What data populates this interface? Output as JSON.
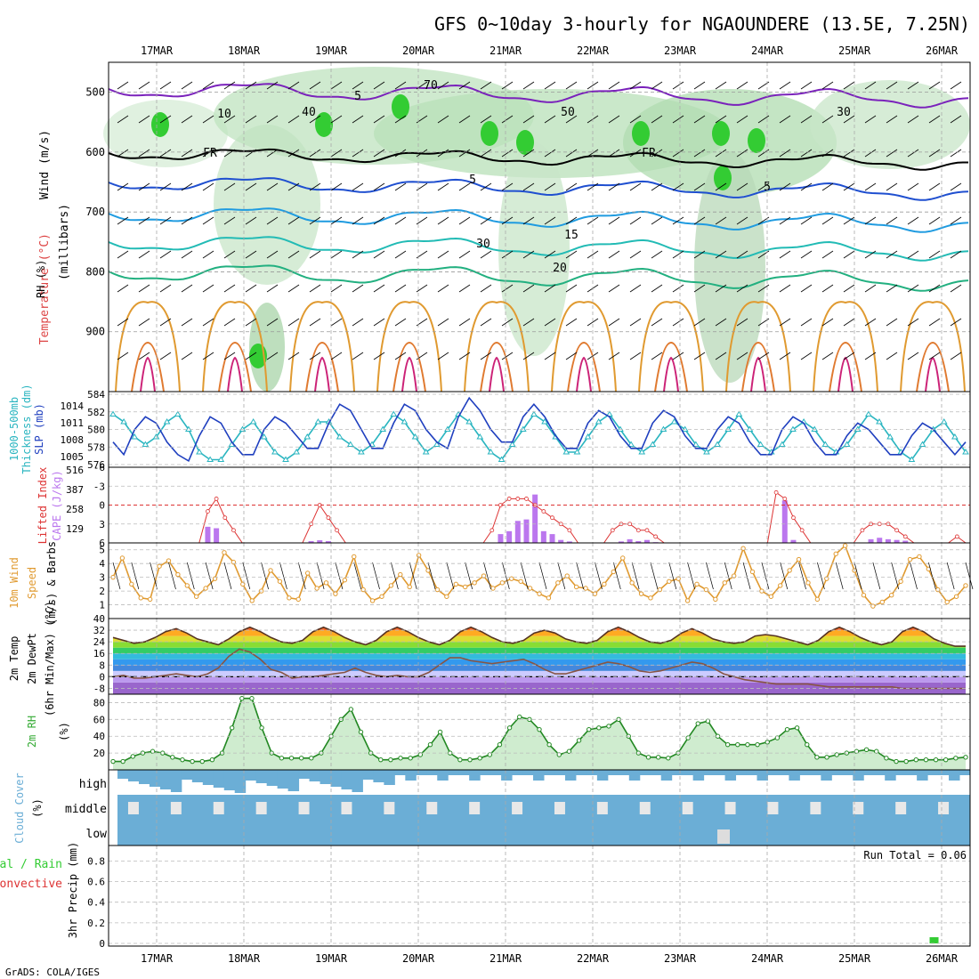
{
  "title": "GFS 0~10day 3-hourly for NGAOUNDERE (13.5E, 7.25N)",
  "footer": "GrADS: COLA/IGES",
  "date_labels": [
    "17MAR",
    "18MAR",
    "19MAR",
    "20MAR",
    "21MAR",
    "22MAR",
    "23MAR",
    "24MAR",
    "25MAR",
    "26MAR"
  ],
  "panel_labels": {
    "profile": {
      "line1": "Wind (m/s)",
      "line2_temp": "Temperature (°C)",
      "line2_rh": "RH (%)",
      "line3": "(millibars)"
    },
    "thickness": {
      "a": "1000-500mb",
      "b": "Thickness (dm)",
      "c": "SLP (mb)"
    },
    "lifted": {
      "a": "Lifted Index",
      "b": "CAPE (J/kg)"
    },
    "wind10": {
      "a": "10m Wind",
      "b": "Speed",
      "c": "(m/s) & Barbs"
    },
    "temp2m": {
      "a": "2m Temp",
      "b": "2m DewPt",
      "c": "(6hr Min/Max) (°C)"
    },
    "rh2m": {
      "a": "2m RH",
      "b": "(%)"
    },
    "cloud": {
      "a": "Cloud Cover",
      "b": "(%)"
    },
    "precip": {
      "a": "Total / Rain",
      "b": "Convective",
      "c": "3hr Precip (mm)"
    }
  },
  "run_total": "Run Total = 0.06",
  "colors": {
    "rh_green": "#33cc33",
    "slp": "#1f3fbf",
    "thickness": "#2ab5c0",
    "cape": "#bb77ee",
    "lifted": "#dd3333",
    "wind": "#e09a30",
    "cloud": "#6baed6",
    "precip": "#33cc33"
  },
  "chart_data": [
    {
      "type": "line",
      "panel": "profile",
      "y_ticks": [
        500,
        600,
        700,
        800,
        900
      ],
      "ylim": [
        1000,
        450
      ],
      "contour_labels": [
        "5",
        "FR",
        "5",
        "10",
        "15",
        "20",
        "30",
        "40",
        "50",
        "70",
        "FR",
        "5",
        "30"
      ]
    },
    {
      "type": "line",
      "panel": "thickness_slp",
      "y_ticks_left": [
        "584",
        "582",
        "580",
        "578",
        "576"
      ],
      "y_ticks_right": [
        "1014",
        "1011",
        "1008",
        "1005"
      ],
      "series": [
        {
          "name": "SLP (mb)",
          "values": [
            1008,
            1006,
            1010,
            1012,
            1011,
            1008,
            1006,
            1005,
            1009,
            1012,
            1011,
            1008,
            1006,
            1006,
            1010,
            1012,
            1011,
            1009,
            1007,
            1007,
            1011,
            1014,
            1013,
            1010,
            1007,
            1007,
            1011,
            1014,
            1013,
            1010,
            1008,
            1007,
            1012,
            1015,
            1013,
            1010,
            1008,
            1008,
            1012,
            1014,
            1012,
            1009,
            1007,
            1007,
            1011,
            1013,
            1012,
            1009,
            1007,
            1007,
            1011,
            1013,
            1012,
            1009,
            1007,
            1007,
            1010,
            1012,
            1011,
            1008,
            1006,
            1006,
            1010,
            1012,
            1011,
            1008,
            1006,
            1006,
            1009,
            1011,
            1010,
            1008,
            1006,
            1006,
            1009,
            1011,
            1010,
            1008,
            1006,
            1008
          ]
        },
        {
          "name": "1000-500mb Thickness (dm)",
          "values": [
            582,
            581,
            579,
            578,
            579,
            581,
            582,
            580,
            577,
            576,
            576,
            578,
            580,
            581,
            579,
            577,
            576,
            577,
            579,
            581,
            581,
            579,
            578,
            577,
            578,
            580,
            582,
            581,
            579,
            577,
            578,
            580,
            582,
            581,
            579,
            577,
            576,
            578,
            580,
            582,
            581,
            579,
            577,
            577,
            579,
            581,
            582,
            580,
            578,
            577,
            578,
            580,
            581,
            580,
            578,
            577,
            578,
            580,
            582,
            580,
            578,
            577,
            578,
            580,
            581,
            580,
            578,
            577,
            578,
            580,
            582,
            581,
            579,
            577,
            576,
            578,
            580,
            581,
            579,
            577
          ]
        }
      ]
    },
    {
      "type": "bar",
      "panel": "lifted_cape",
      "y_ticks_left": [
        "-6",
        "-3",
        "0",
        "3",
        "6"
      ],
      "y_ticks_right": [
        "516",
        "387",
        "258",
        "129"
      ],
      "series": [
        {
          "name": "CAPE (J/kg)",
          "values": [
            0,
            0,
            0,
            0,
            0,
            0,
            0,
            0,
            0,
            0,
            0,
            110,
            100,
            0,
            0,
            0,
            0,
            0,
            0,
            0,
            0,
            0,
            0,
            12,
            18,
            12,
            0,
            0,
            0,
            0,
            0,
            0,
            0,
            0,
            0,
            0,
            0,
            0,
            0,
            0,
            0,
            0,
            0,
            0,
            0,
            60,
            80,
            150,
            160,
            330,
            80,
            60,
            20,
            10,
            0,
            0,
            0,
            0,
            0,
            10,
            25,
            12,
            20,
            5,
            0,
            0,
            0,
            0,
            0,
            0,
            0,
            0,
            0,
            0,
            0,
            0,
            0,
            0,
            290,
            20,
            0,
            0,
            0,
            0,
            0,
            0,
            0,
            0,
            25,
            35,
            25,
            20,
            15,
            0,
            0,
            0,
            0,
            0,
            0,
            0
          ]
        },
        {
          "name": "Lifted Index",
          "values": [
            6,
            6,
            6,
            6,
            6,
            6,
            6,
            6,
            6,
            6,
            6,
            1,
            -1,
            2,
            4,
            6,
            6,
            6,
            6,
            6,
            6,
            6,
            6,
            3,
            0,
            2,
            4,
            6,
            6,
            6,
            6,
            6,
            6,
            6,
            6,
            6,
            6,
            6,
            6,
            6,
            6,
            6,
            6,
            6,
            4,
            0,
            -1,
            -1,
            -1,
            0,
            1,
            2,
            3,
            4,
            6,
            6,
            6,
            6,
            4,
            3,
            3,
            4,
            4,
            5,
            6,
            6,
            6,
            6,
            6,
            6,
            6,
            6,
            6,
            6,
            6,
            6,
            6,
            -2,
            -1,
            2,
            4,
            6,
            6,
            6,
            6,
            6,
            6,
            4,
            3,
            3,
            3,
            4,
            5,
            6,
            6,
            6,
            6,
            6,
            5,
            6
          ]
        }
      ]
    },
    {
      "type": "line",
      "panel": "wind10m",
      "y_ticks": [
        "5",
        "4",
        "3",
        "2",
        "1"
      ],
      "ylim": [
        0,
        5.5
      ],
      "series": [
        {
          "name": "Speed",
          "values": [
            3,
            4.4,
            2.5,
            1.5,
            1.4,
            3.8,
            4.2,
            3.2,
            2.4,
            1.6,
            2.2,
            2.9,
            4.8,
            4.1,
            2.5,
            1.3,
            2,
            3.5,
            2.7,
            1.5,
            1.4,
            3.3,
            2.2,
            2.6,
            1.8,
            2.8,
            4.5,
            2.1,
            1.3,
            1.6,
            2.4,
            3.2,
            2.3,
            4.6,
            3.5,
            2.1,
            1.6,
            2.5,
            2.3,
            2.6,
            3.1,
            2.2,
            2.6,
            2.9,
            2.7,
            2.2,
            1.8,
            1.5,
            2.6,
            3.1,
            2.3,
            2.2,
            1.8,
            2.5,
            3.4,
            4.4,
            2.6,
            1.8,
            1.5,
            2.1,
            2.7,
            2.9,
            1.3,
            2.5,
            2.1,
            1.4,
            2.6,
            3.1,
            5.1,
            3.4,
            2,
            1.6,
            2.4,
            3.5,
            4.3,
            2.6,
            1.4,
            2.9,
            4.7,
            5.3,
            3.5,
            1.7,
            0.9,
            1.2,
            1.7,
            2.7,
            4.3,
            4.5,
            3.6,
            2.1,
            1.2,
            1.6,
            2.4
          ]
        }
      ]
    },
    {
      "type": "area",
      "panel": "temp2m",
      "y_ticks": [
        "40",
        "32",
        "24",
        "16",
        "8",
        "0",
        "-8"
      ],
      "ylim": [
        -12,
        40
      ],
      "series": [
        {
          "name": "2m Temp",
          "values": [
            27,
            25,
            23,
            24,
            27,
            31,
            33,
            30,
            26,
            24,
            22,
            26,
            31,
            34,
            31,
            27,
            24,
            23,
            25,
            31,
            34,
            31,
            27,
            24,
            22,
            25,
            31,
            34,
            31,
            27,
            24,
            22,
            25,
            31,
            34,
            31,
            27,
            24,
            23,
            25,
            30,
            32,
            30,
            26,
            24,
            23,
            25,
            31,
            34,
            31,
            27,
            24,
            23,
            25,
            30,
            33,
            30,
            26,
            24,
            23,
            24,
            28,
            29,
            28,
            26,
            24,
            22,
            25,
            31,
            34,
            31,
            27,
            24,
            22,
            24,
            31,
            34,
            31,
            26,
            23,
            21,
            21
          ]
        },
        {
          "name": "2m DewPt",
          "values": [
            0,
            1,
            -1,
            -1,
            0,
            1,
            2,
            1,
            0,
            2,
            6,
            14,
            19,
            17,
            12,
            5,
            3,
            -1,
            0,
            0,
            1,
            2,
            3,
            6,
            3,
            1,
            0,
            1,
            0,
            0,
            3,
            8,
            13,
            13,
            11,
            10,
            9,
            10,
            11,
            12,
            9,
            5,
            2,
            2,
            4,
            6,
            8,
            10,
            9,
            7,
            4,
            3,
            4,
            6,
            8,
            10,
            9,
            6,
            2,
            0,
            -2,
            -3,
            -4,
            -5,
            -5,
            -5,
            -5,
            -6,
            -7,
            -7,
            -7,
            -7,
            -7,
            -7,
            -7,
            -8,
            -8,
            -8,
            -8,
            -8,
            -8,
            -8
          ]
        }
      ]
    },
    {
      "type": "area",
      "panel": "rh2m",
      "y_ticks": [
        "80",
        "60",
        "40",
        "20"
      ],
      "ylim": [
        0,
        90
      ],
      "series": [
        {
          "name": "2m RH",
          "values": [
            10,
            10,
            16,
            20,
            22,
            20,
            15,
            12,
            10,
            10,
            12,
            20,
            50,
            85,
            85,
            50,
            20,
            14,
            14,
            14,
            14,
            20,
            40,
            60,
            72,
            45,
            20,
            12,
            12,
            14,
            14,
            18,
            30,
            45,
            20,
            12,
            12,
            14,
            18,
            30,
            50,
            63,
            60,
            48,
            30,
            18,
            22,
            35,
            48,
            50,
            52,
            60,
            40,
            20,
            15,
            15,
            14,
            20,
            38,
            55,
            58,
            40,
            30,
            30,
            30,
            30,
            33,
            38,
            48,
            50,
            30,
            15,
            15,
            18,
            20,
            22,
            24,
            22,
            14,
            10,
            10,
            12,
            12,
            12,
            12,
            14,
            15
          ]
        }
      ]
    },
    {
      "type": "heatmap",
      "panel": "cloud",
      "rows": [
        "high",
        "middle",
        "low"
      ]
    },
    {
      "type": "bar",
      "panel": "precip",
      "y_ticks": [
        "0.8",
        "0.6",
        "0.4",
        "0.2",
        "0"
      ],
      "ylim": [
        0,
        0.95
      ],
      "series": [
        {
          "name": "Total / Rain",
          "values": [
            0,
            0,
            0,
            0,
            0,
            0,
            0,
            0,
            0,
            0,
            0,
            0,
            0,
            0,
            0,
            0,
            0,
            0,
            0,
            0,
            0,
            0,
            0,
            0,
            0,
            0,
            0,
            0,
            0,
            0,
            0,
            0,
            0,
            0,
            0,
            0,
            0,
            0,
            0,
            0,
            0,
            0,
            0,
            0,
            0,
            0,
            0,
            0,
            0,
            0,
            0,
            0,
            0,
            0,
            0,
            0,
            0,
            0,
            0,
            0,
            0,
            0,
            0,
            0,
            0,
            0,
            0,
            0,
            0,
            0,
            0,
            0,
            0,
            0,
            0,
            0,
            0,
            0,
            0.06,
            0,
            0,
            0
          ]
        }
      ]
    }
  ]
}
